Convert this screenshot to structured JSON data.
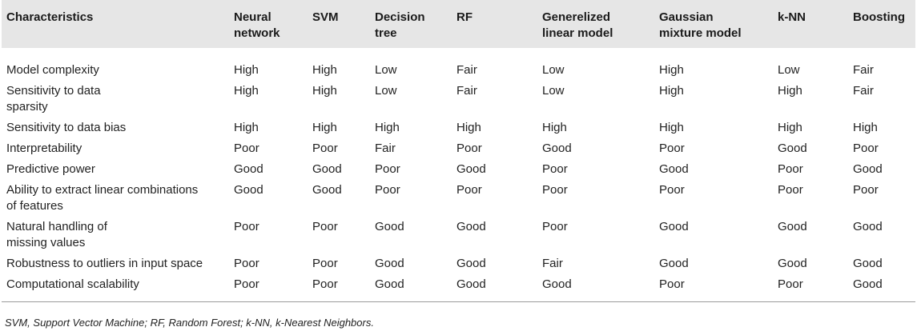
{
  "table": {
    "headers": [
      {
        "l1": "Characteristics",
        "l2": ""
      },
      {
        "l1": "Neural",
        "l2": "network"
      },
      {
        "l1": "SVM",
        "l2": ""
      },
      {
        "l1": "Decision",
        "l2": "tree"
      },
      {
        "l1": "RF",
        "l2": ""
      },
      {
        "l1": "Generelized",
        "l2": "linear model"
      },
      {
        "l1": "Gaussian",
        "l2": "mixture model"
      },
      {
        "l1": "k-NN",
        "l2": ""
      },
      {
        "l1": "Boosting",
        "l2": ""
      }
    ],
    "rows": [
      {
        "label": [
          "Model complexity"
        ],
        "values": [
          "High",
          "High",
          "Low",
          "Fair",
          "Low",
          "High",
          "Low",
          "Fair"
        ]
      },
      {
        "label": [
          "Sensitivity to data",
          "sparsity"
        ],
        "values": [
          "High",
          "High",
          "Low",
          "Fair",
          "Low",
          "High",
          "High",
          "Fair"
        ]
      },
      {
        "label": [
          "Sensitivity to data bias"
        ],
        "values": [
          "High",
          "High",
          "High",
          "High",
          "High",
          "High",
          "High",
          "High"
        ]
      },
      {
        "label": [
          "Interpretability"
        ],
        "values": [
          "Poor",
          "Poor",
          "Fair",
          "Poor",
          "Good",
          "Poor",
          "Good",
          "Poor"
        ]
      },
      {
        "label": [
          "Predictive power"
        ],
        "values": [
          "Good",
          "Good",
          "Poor",
          "Good",
          "Poor",
          "Good",
          "Poor",
          "Good"
        ]
      },
      {
        "label": [
          "Ability to extract linear combinations",
          "of features"
        ],
        "values": [
          "Good",
          "Good",
          "Poor",
          "Poor",
          "Poor",
          "Poor",
          "Poor",
          "Poor"
        ]
      },
      {
        "label": [
          "Natural handling of",
          "missing values"
        ],
        "values": [
          "Poor",
          "Poor",
          "Good",
          "Good",
          "Poor",
          "Good",
          "Good",
          "Good"
        ]
      },
      {
        "label": [
          "Robustness to outliers in input space"
        ],
        "values": [
          "Poor",
          "Poor",
          "Good",
          "Good",
          "Fair",
          "Good",
          "Good",
          "Good"
        ]
      },
      {
        "label": [
          "Computational scalability"
        ],
        "values": [
          "Poor",
          "Poor",
          "Good",
          "Good",
          "Good",
          "Poor",
          "Poor",
          "Good"
        ]
      }
    ]
  },
  "footnote": "SVM, Support Vector Machine; RF, Random Forest; k-NN, k-Nearest Neighbors."
}
